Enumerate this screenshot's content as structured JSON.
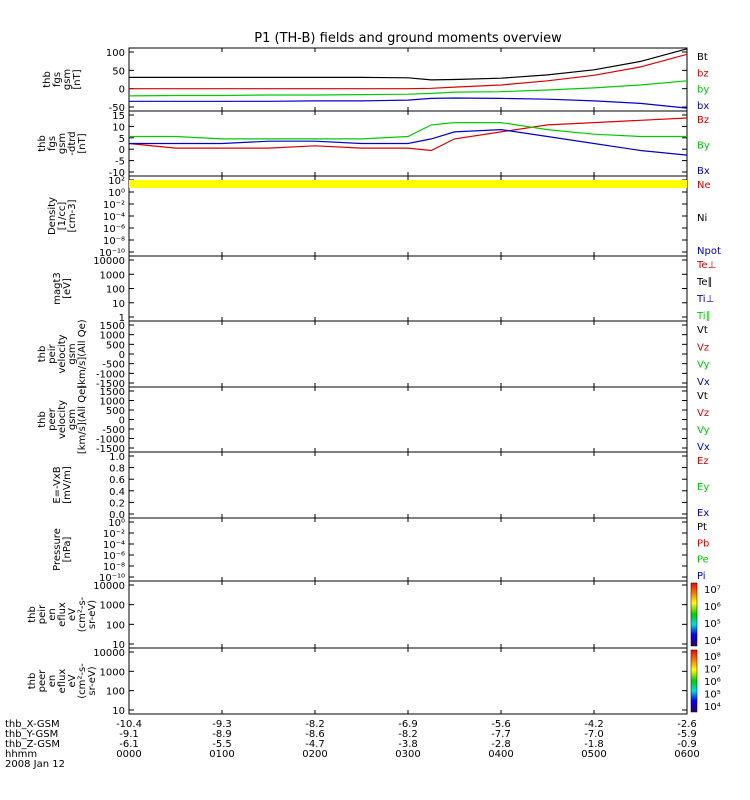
{
  "title": "P1 (TH-B) fields and ground moments overview",
  "time_axis": {
    "tick_labels": [
      "0000",
      "0100",
      "0200",
      "0300",
      "0400",
      "0500",
      "0600"
    ],
    "rows": [
      {
        "label": "thb_X-GSM",
        "values": [
          "-10.4",
          "-9.3",
          "-8.2",
          "-6.9",
          "-5.6",
          "-4.2",
          "-2.6"
        ]
      },
      {
        "label": "thb_Y-GSM",
        "values": [
          "-9.1",
          "-8.9",
          "-8.6",
          "-8.2",
          "-7.7",
          "-7.0",
          "-5.9"
        ]
      },
      {
        "label": "thb_Z-GSM",
        "values": [
          "-6.1",
          "-5.5",
          "-4.7",
          "-3.8",
          "-2.8",
          "-1.8",
          "-0.9"
        ]
      },
      {
        "label": "hhmm",
        "values": []
      }
    ],
    "date": "2008 Jan 12"
  },
  "colors": {
    "black": "#000000",
    "red": "#dd0000",
    "green": "#00cc00",
    "blue": "#0000cc",
    "yellow": "#ffff00"
  },
  "panels": [
    {
      "id": "fgs-gsm",
      "ylabel": [
        "thb",
        "fgs",
        "gsm",
        "[nT]"
      ],
      "ticks": [
        "100",
        "50",
        "0",
        "-50"
      ],
      "legend": [
        {
          "text": "Bt",
          "color": "black"
        },
        {
          "text": "bz",
          "color": "red"
        },
        {
          "text": "by",
          "color": "green"
        },
        {
          "text": "bx",
          "color": "blue"
        }
      ]
    },
    {
      "id": "fgs-gsm-dtrd",
      "ylabel": [
        "thb",
        "fgs",
        "gsm",
        "-dtrd",
        "[nT]"
      ],
      "ticks": [
        "15",
        "10",
        "5",
        "0",
        "-5",
        "-10"
      ],
      "legend": [
        {
          "text": "Bz",
          "color": "red"
        },
        {
          "text": "By",
          "color": "green"
        },
        {
          "text": "Bx",
          "color": "blue"
        }
      ]
    },
    {
      "id": "density",
      "ylabel": [
        "Density",
        "[1/cc]",
        "[cm-3]"
      ],
      "ticks": [
        "10²",
        "10⁰",
        "10⁻²",
        "10⁻⁴",
        "10⁻⁶",
        "10⁻⁸",
        "10⁻¹⁰"
      ],
      "legend": [
        {
          "text": "Ne",
          "color": "red"
        },
        {
          "text": "Ni",
          "color": "black"
        },
        {
          "text": "Npot",
          "color": "blue"
        }
      ]
    },
    {
      "id": "temperature",
      "ylabel": [
        "magt3",
        "[eV]"
      ],
      "ticks": [
        "10000",
        "1000",
        "100",
        "10",
        "1"
      ],
      "legend": [
        {
          "text": "Te⊥",
          "color": "red"
        },
        {
          "text": "Te∥",
          "color": "black"
        },
        {
          "text": "Ti⊥",
          "color": "blue"
        },
        {
          "text": "Ti∥",
          "color": "green"
        }
      ]
    },
    {
      "id": "peir-velocity",
      "ylabel": [
        "thb",
        "peir",
        "velocity",
        "gsm",
        "[km/s](All Qe)"
      ],
      "ticks": [
        "1500",
        "1000",
        "500",
        "0",
        "-500",
        "-1000",
        "-1500"
      ],
      "legend": [
        {
          "text": "Vt",
          "color": "black"
        },
        {
          "text": "Vz",
          "color": "red"
        },
        {
          "text": "Vy",
          "color": "green"
        },
        {
          "text": "Vx",
          "color": "blue"
        }
      ]
    },
    {
      "id": "peer-velocity",
      "ylabel": [
        "thb",
        "peer",
        "velocity",
        "gsm",
        "[km/s](All Qe)"
      ],
      "ticks": [
        "1500",
        "1000",
        "500",
        "0",
        "-500",
        "-1000",
        "-1500"
      ],
      "legend": [
        {
          "text": "Vt",
          "color": "black"
        },
        {
          "text": "Vz",
          "color": "red"
        },
        {
          "text": "Vy",
          "color": "green"
        },
        {
          "text": "Vx",
          "color": "blue"
        }
      ]
    },
    {
      "id": "efield",
      "ylabel": [
        "E=-VxB",
        "[mV/m]"
      ],
      "ticks": [
        "1.0",
        "0.8",
        "0.6",
        "0.4",
        "0.2",
        "0.0"
      ],
      "legend": [
        {
          "text": "Ez",
          "color": "red"
        },
        {
          "text": "Ey",
          "color": "green"
        },
        {
          "text": "Ex",
          "color": "blue"
        }
      ]
    },
    {
      "id": "pressure",
      "ylabel": [
        "Pressure",
        "[nPa]"
      ],
      "ticks": [
        "10⁰",
        "10⁻²",
        "10⁻⁴",
        "10⁻⁶",
        "10⁻⁸",
        "10⁻¹⁰"
      ],
      "legend": [
        {
          "text": "Pt",
          "color": "black"
        },
        {
          "text": "Pb",
          "color": "red"
        },
        {
          "text": "Pe",
          "color": "green"
        },
        {
          "text": "Pi",
          "color": "blue"
        }
      ]
    },
    {
      "id": "peir-spectrogram",
      "ylabel": [
        "thb",
        "peir",
        "en",
        "eflux",
        "eV",
        "(cm²-s-",
        "sr-eV)"
      ],
      "ticks": [
        "10000",
        "1000",
        "100",
        "10"
      ],
      "colorbar": [
        "10⁷",
        "10⁶",
        "10⁵",
        "10⁴"
      ],
      "legend": []
    },
    {
      "id": "peer-spectrogram",
      "ylabel": [
        "thb",
        "peer",
        "en",
        "eflux",
        "eV",
        "(cm²-s-",
        "sr-eV)"
      ],
      "ticks": [
        "10000",
        "1000",
        "100",
        "10"
      ],
      "colorbar": [
        "10⁸",
        "10⁷",
        "10⁶",
        "10⁵",
        "10⁴"
      ],
      "legend": []
    }
  ],
  "chart_data": [
    {
      "type": "line",
      "panel": "fgs-gsm",
      "x": [
        "0000",
        "0030",
        "0100",
        "0130",
        "0200",
        "0230",
        "0300",
        "0315",
        "0330",
        "0400",
        "0430",
        "0500",
        "0530",
        "0600"
      ],
      "ylim": [
        -50,
        100
      ],
      "series": [
        {
          "name": "Bt",
          "color": "black",
          "values": [
            30,
            30,
            30,
            30,
            30,
            30,
            29,
            24,
            25,
            28,
            36,
            48,
            68,
            98
          ]
        },
        {
          "name": "bz",
          "color": "red",
          "values": [
            3,
            3,
            3,
            3,
            3,
            3,
            3,
            4,
            7,
            12,
            22,
            35,
            55,
            85
          ]
        },
        {
          "name": "by",
          "color": "green",
          "values": [
            -14,
            -13,
            -13,
            -12,
            -12,
            -11,
            -10,
            -8,
            -5,
            -4,
            0,
            5,
            12,
            22
          ]
        },
        {
          "name": "bx",
          "color": "blue",
          "values": [
            -27,
            -27,
            -27,
            -27,
            -26,
            -26,
            -24,
            -20,
            -19,
            -20,
            -22,
            -26,
            -32,
            -43
          ]
        }
      ]
    },
    {
      "type": "line",
      "panel": "fgs-gsm-dtrd",
      "x": [
        "0000",
        "0030",
        "0100",
        "0130",
        "0200",
        "0230",
        "0300",
        "0315",
        "0330",
        "0400",
        "0430",
        "0500",
        "0530",
        "0600"
      ],
      "ylim": [
        -13,
        15
      ],
      "series": [
        {
          "name": "Bz",
          "color": "red",
          "values": [
            1,
            -1,
            -1,
            -1,
            0,
            -1,
            -1,
            -2,
            3,
            6,
            9,
            10,
            11,
            12
          ]
        },
        {
          "name": "By",
          "color": "green",
          "values": [
            4,
            4,
            3,
            3,
            3,
            3,
            4,
            9,
            10,
            10,
            7,
            5,
            4,
            4
          ]
        },
        {
          "name": "Bx",
          "color": "blue",
          "values": [
            1,
            1,
            1,
            2,
            2,
            1,
            1,
            3,
            6,
            7,
            4,
            1,
            -2,
            -4
          ]
        }
      ]
    }
  ]
}
